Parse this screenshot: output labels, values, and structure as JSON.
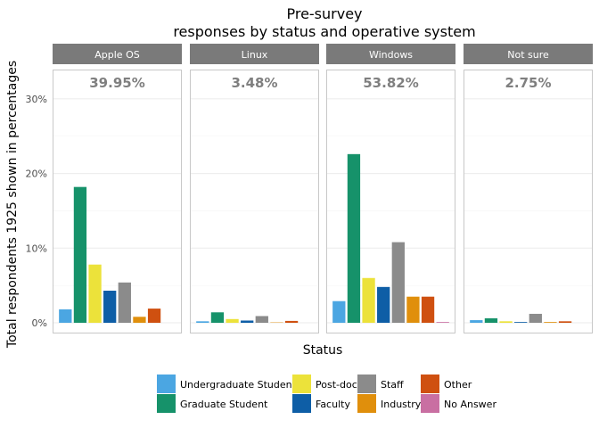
{
  "chart_data": {
    "type": "bar",
    "title": [
      "Pre-survey",
      "responses by status and operative system"
    ],
    "xlabel": "Status",
    "ylabel": "Total respondents 1925 shown in percentages",
    "ylim": [
      0,
      32
    ],
    "yticks": [
      0,
      10,
      20,
      30
    ],
    "ytick_labels": [
      "0%",
      "10%",
      "20%",
      "30%"
    ],
    "grid": true,
    "legend_position": "bottom",
    "categories": [
      "Undergraduate Student",
      "Graduate Student",
      "Post-doc",
      "Faculty",
      "Staff",
      "Industry",
      "Other",
      "No Answer"
    ],
    "colors": [
      "#4ba6e2",
      "#16926a",
      "#ece23a",
      "#0e5ea6",
      "#8b8b8b",
      "#e08f0c",
      "#cf5010",
      "#c96fa2"
    ],
    "legend_layout": [
      [
        "Undergraduate Student",
        "Graduate Student"
      ],
      [
        "Post-doc",
        "Faculty"
      ],
      [
        "Staff",
        "Industry"
      ],
      [
        "Other",
        "No Answer"
      ]
    ],
    "panels": [
      {
        "name": "Apple OS",
        "total_label": "39.95%",
        "values": [
          1.8,
          18.2,
          7.8,
          4.3,
          5.4,
          0.8,
          1.9,
          0.0
        ]
      },
      {
        "name": "Linux",
        "total_label": "3.48%",
        "values": [
          0.2,
          1.4,
          0.5,
          0.3,
          0.9,
          0.05,
          0.25,
          0.0
        ]
      },
      {
        "name": "Windows",
        "total_label": "53.82%",
        "values": [
          2.9,
          22.6,
          6.0,
          4.8,
          10.8,
          3.5,
          3.5,
          0.1
        ]
      },
      {
        "name": "Not sure",
        "total_label": "2.75%",
        "values": [
          0.35,
          0.6,
          0.2,
          0.1,
          1.2,
          0.1,
          0.2,
          0.0
        ]
      }
    ]
  }
}
